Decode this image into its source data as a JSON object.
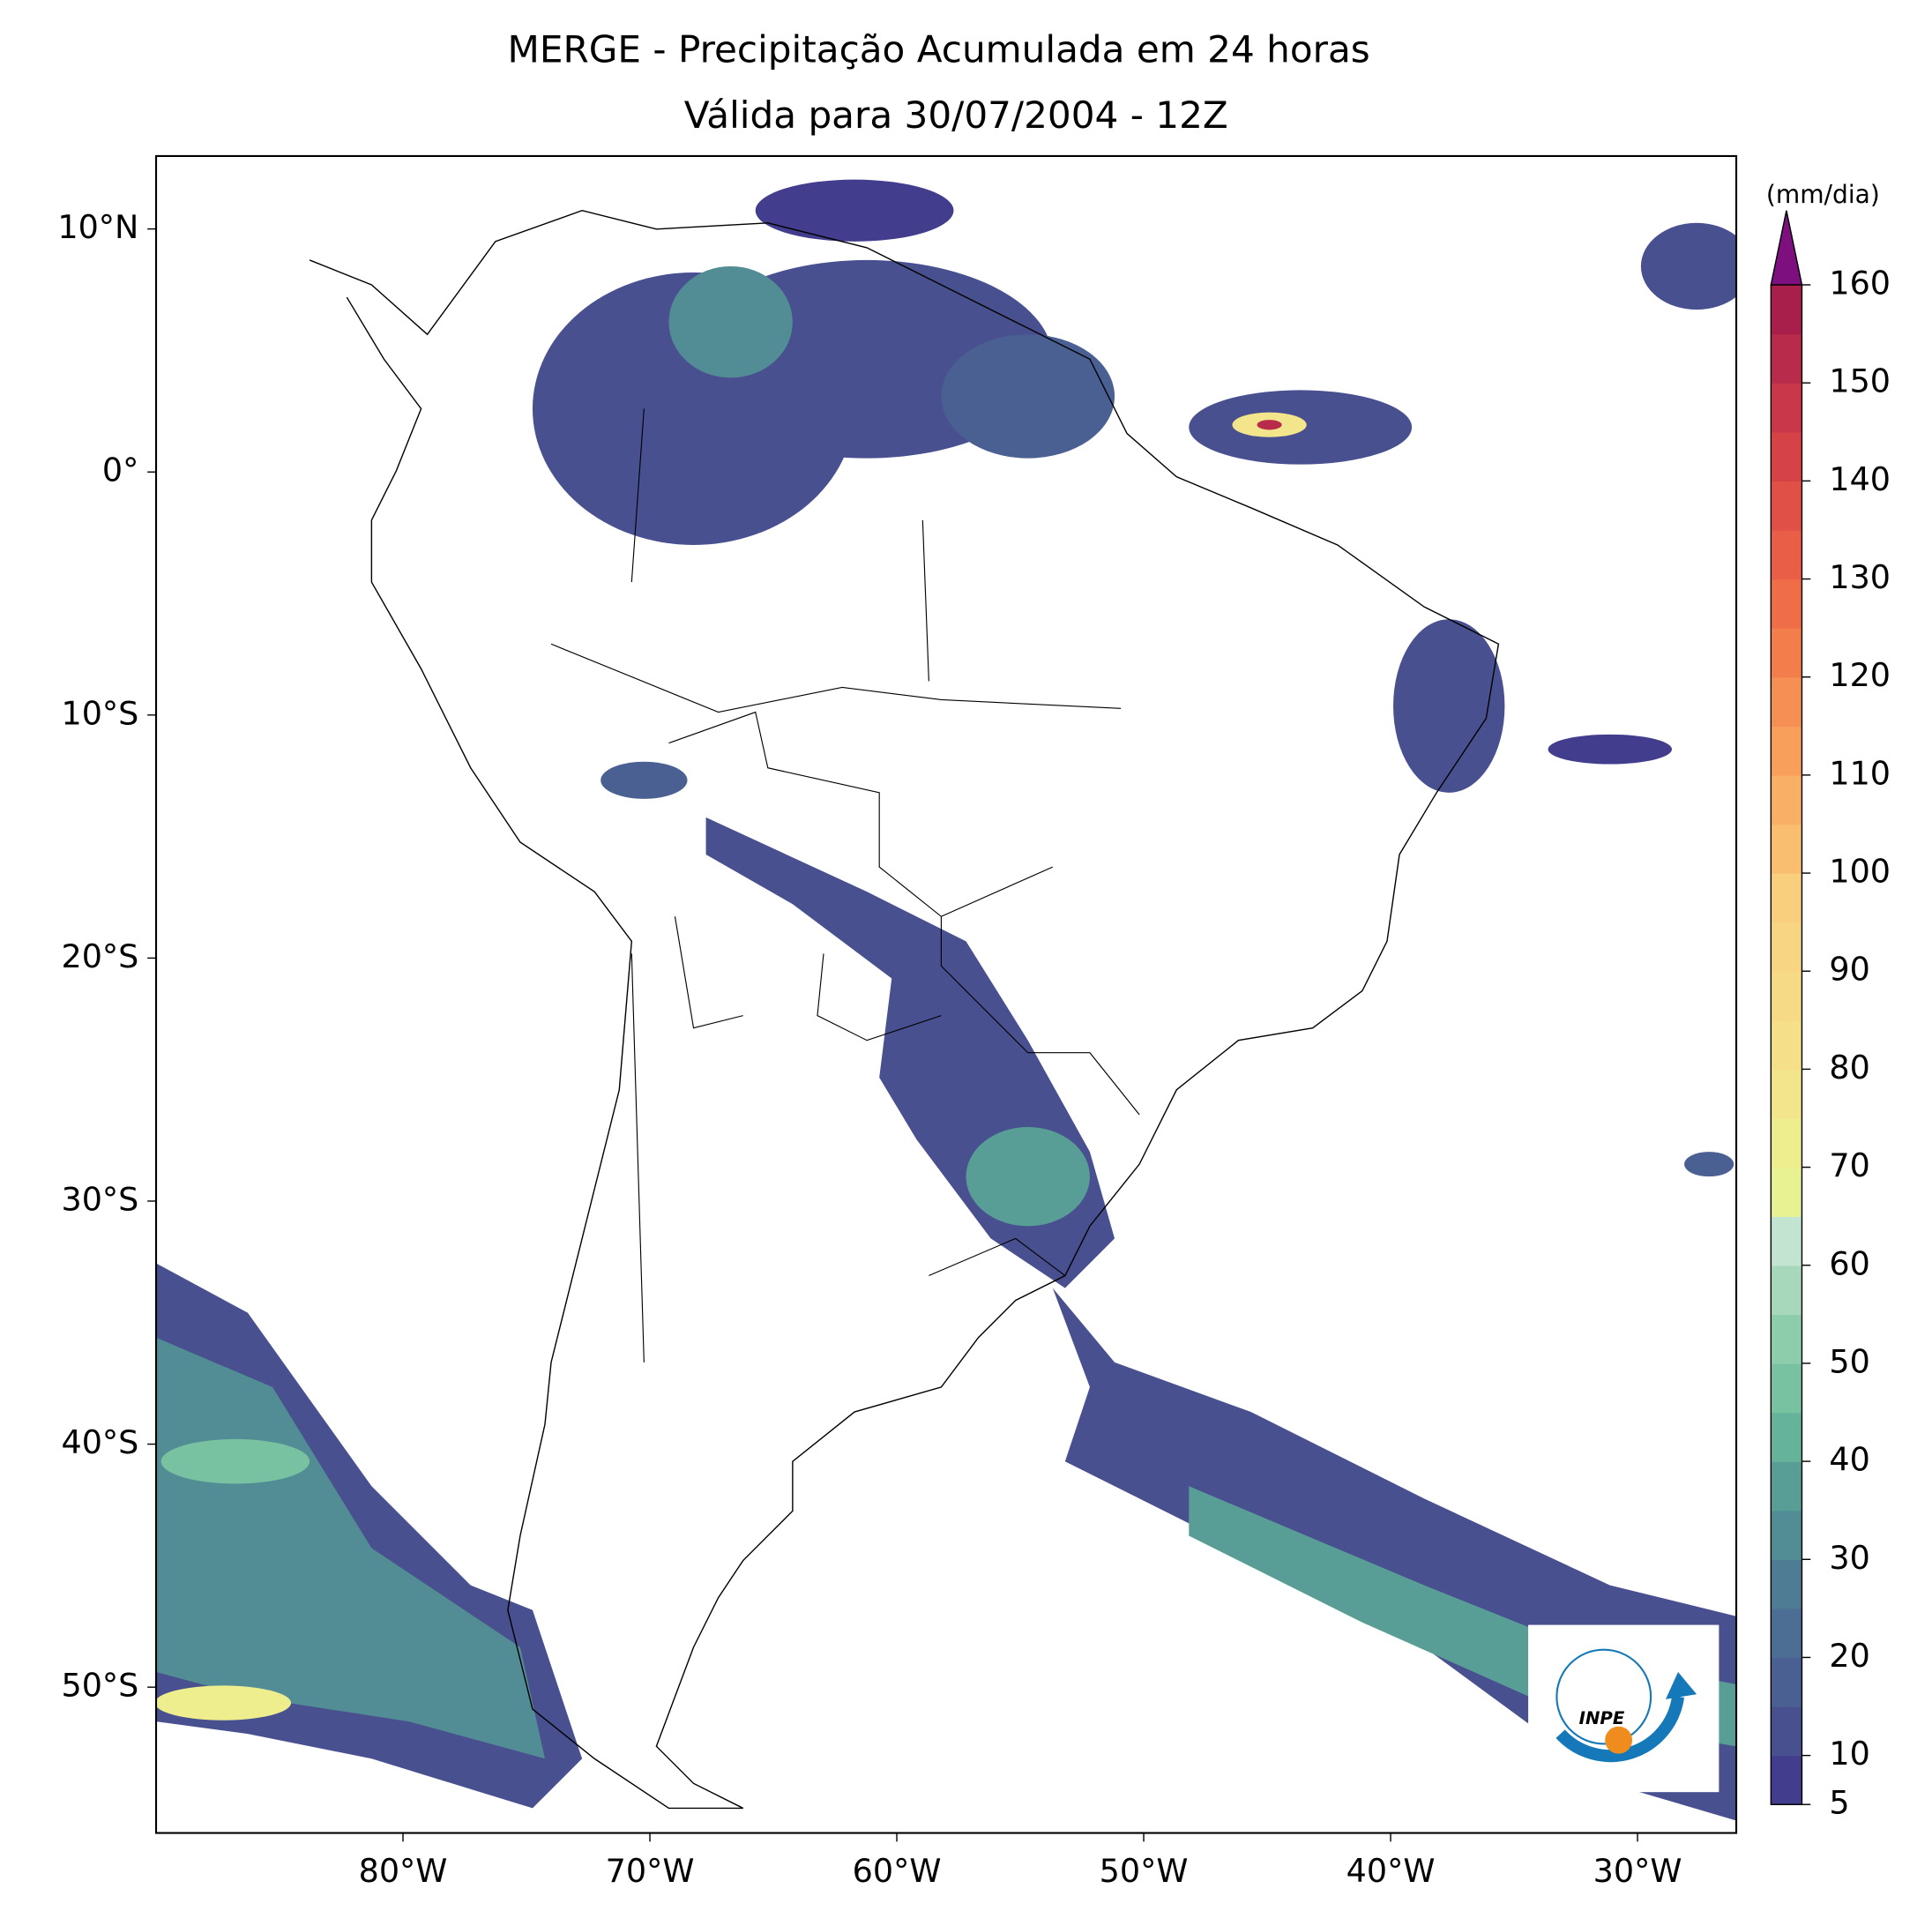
{
  "chart_data": {
    "type": "contour-map",
    "title": "MERGE - Precipitação Acumulada em 24 horas",
    "subtitle": "Válida para 30/07/2004 - 12Z",
    "xlim": [
      -90,
      -26
    ],
    "ylim": [
      -56,
      13
    ],
    "xticks": [
      {
        "value": -80,
        "label": "80°W"
      },
      {
        "value": -70,
        "label": "70°W"
      },
      {
        "value": -60,
        "label": "60°W"
      },
      {
        "value": -50,
        "label": "50°W"
      },
      {
        "value": -40,
        "label": "40°W"
      },
      {
        "value": -30,
        "label": "30°W"
      }
    ],
    "yticks": [
      {
        "value": 10,
        "label": "10°N"
      },
      {
        "value": 0,
        "label": "0°"
      },
      {
        "value": -10,
        "label": "10°S"
      },
      {
        "value": -20,
        "label": "20°S"
      },
      {
        "value": -30,
        "label": "30°S"
      },
      {
        "value": -40,
        "label": "40°S"
      },
      {
        "value": -50,
        "label": "50°S"
      }
    ],
    "colorbar": {
      "label": "(mm/dia)",
      "levels": [
        5,
        10,
        15,
        20,
        25,
        30,
        35,
        40,
        45,
        50,
        55,
        60,
        65,
        70,
        75,
        80,
        85,
        90,
        95,
        100,
        105,
        110,
        115,
        120,
        125,
        130,
        135,
        140,
        145,
        150,
        155,
        160
      ],
      "colors": [
        "#423d8c",
        "#48508f",
        "#4a5f92",
        "#4c6d94",
        "#4e7c95",
        "#528c94",
        "#599e96",
        "#66b39b",
        "#78c2a2",
        "#8ecdac",
        "#a8d8bc",
        "#c4e4d2",
        "#e8f293",
        "#eeee8e",
        "#f2e58b",
        "#f5df88",
        "#f7da86",
        "#f8d582",
        "#f9cf7e",
        "#f9be6e",
        "#f9b064",
        "#f8a05b",
        "#f68f53",
        "#f37e4c",
        "#ef6e48",
        "#e95e46",
        "#e15046",
        "#d64347",
        "#c8374a",
        "#b82b4a",
        "#a81f4b"
      ],
      "extend_color": "#7e0f7e",
      "ticks": [
        5,
        10,
        20,
        30,
        40,
        50,
        60,
        70,
        80,
        90,
        100,
        110,
        120,
        130,
        140,
        150,
        160
      ]
    }
  },
  "logo": {
    "text": "INPE"
  }
}
